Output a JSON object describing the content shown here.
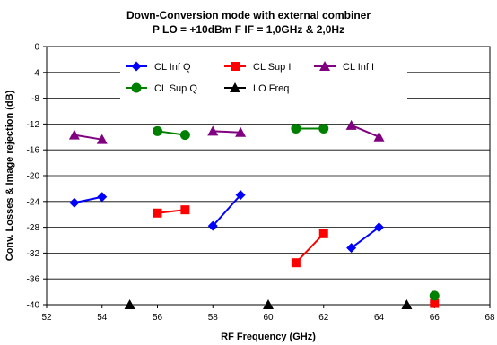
{
  "chart_data": {
    "type": "line",
    "title": "Down-Conversion mode with external combiner",
    "subtitle": "P LO = +10dBm F IF = 1,0GHz & 2,0Hz",
    "xlabel": "RF Frequency (GHz)",
    "ylabel": "Conv. Losses & Image rejection (dB)",
    "xlim": [
      52,
      68
    ],
    "ylim": [
      -40,
      0
    ],
    "xticks": [
      "52",
      "54",
      "56",
      "58",
      "60",
      "62",
      "64",
      "66",
      "68"
    ],
    "yticks": [
      "0",
      "-4",
      "-8",
      "-12",
      "-16",
      "-20",
      "-24",
      "-28",
      "-32",
      "-36",
      "-40"
    ],
    "grid": "horizontal",
    "legend_position": "top-center",
    "series": [
      {
        "name": "CL Inf Q",
        "color": "#0000ff",
        "marker": "diamond",
        "segments": [
          [
            [
              53,
              -24.2
            ],
            [
              54,
              -23.3
            ]
          ],
          [
            [
              58,
              -27.8
            ],
            [
              59,
              -23.0
            ]
          ],
          [
            [
              63,
              -31.2
            ],
            [
              64,
              -28.0
            ]
          ]
        ]
      },
      {
        "name": "CL Sup I",
        "color": "#ff0000",
        "marker": "square",
        "segments": [
          [
            [
              56,
              -25.8
            ],
            [
              57,
              -25.3
            ]
          ],
          [
            [
              61,
              -33.5
            ],
            [
              62,
              -29.0
            ]
          ],
          [
            [
              66,
              -39.8
            ]
          ]
        ]
      },
      {
        "name": "CL Inf I",
        "color": "#800080",
        "marker": "triangle",
        "segments": [
          [
            [
              53,
              -13.7
            ],
            [
              54,
              -14.4
            ]
          ],
          [
            [
              58,
              -13.1
            ],
            [
              59,
              -13.3
            ]
          ],
          [
            [
              63,
              -12.2
            ],
            [
              64,
              -14.0
            ]
          ]
        ]
      },
      {
        "name": "CL Sup Q",
        "color": "#008000",
        "marker": "circle",
        "segments": [
          [
            [
              56,
              -13.1
            ],
            [
              57,
              -13.7
            ]
          ],
          [
            [
              61,
              -12.7
            ],
            [
              62,
              -12.7
            ]
          ],
          [
            [
              66,
              -38.6
            ]
          ]
        ]
      },
      {
        "name": "LO Freq",
        "color": "#000000",
        "marker": "triangle",
        "segments": [
          [
            [
              55,
              -40
            ]
          ],
          [
            [
              60,
              -40
            ]
          ],
          [
            [
              65,
              -40
            ]
          ]
        ]
      }
    ]
  }
}
